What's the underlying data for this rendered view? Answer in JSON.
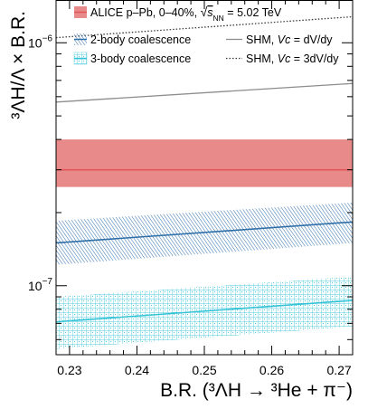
{
  "chart_data": {
    "type": "line",
    "xlabel": "B.R. (³ΛH → ³He + π⁻)",
    "ylabel": "³ΛH/Λ × B.R.",
    "xlim": [
      0.228,
      0.272
    ],
    "ylim": [
      5.2e-08,
      1.5e-06
    ],
    "yscale": "log",
    "x_ticks": [
      0.23,
      0.24,
      0.25,
      0.26,
      0.27
    ],
    "x_tick_labels": [
      "0.23",
      "0.24",
      "0.25",
      "0.26",
      "0.27"
    ],
    "y_tick_labels": [
      {
        "value": 1e-07,
        "base": "10",
        "exp": "−7"
      },
      {
        "value": 1e-06,
        "base": "10",
        "exp": "−6"
      }
    ],
    "series": [
      {
        "name": "ALICE p–Pb, 0–40%, √sNN = 5.02 TeV",
        "kind": "measurement",
        "x": [
          0.228,
          0.272
        ],
        "y": [
          3e-07,
          3e-07
        ],
        "y_low": [
          2.55e-07,
          2.55e-07
        ],
        "y_high": [
          4e-07,
          4e-07
        ],
        "color": "#e15759",
        "band_color": "#e88a89"
      },
      {
        "name": "2-body coalescence",
        "kind": "model-band",
        "x": [
          0.228,
          0.272
        ],
        "y": [
          1.5e-07,
          1.83e-07
        ],
        "y_low": [
          1.22e-07,
          1.5e-07
        ],
        "y_high": [
          1.85e-07,
          2.2e-07
        ],
        "color": "#2f6fa8",
        "band_color": "#5f8fbe"
      },
      {
        "name": "3-body coalescence",
        "kind": "model-band",
        "x": [
          0.228,
          0.272
        ],
        "y": [
          7.1e-08,
          8.7e-08
        ],
        "y_low": [
          5.5e-08,
          6.8e-08
        ],
        "y_high": [
          9e-08,
          1.09e-07
        ],
        "color": "#34c3d6",
        "band_color": "#6fd3e0"
      },
      {
        "name": "SHM, Vc = dV/dy",
        "kind": "model-line",
        "x": [
          0.228,
          0.272
        ],
        "y": [
          5.7e-07,
          6.8e-07
        ],
        "color": "#8c8c8c",
        "dash": "solid"
      },
      {
        "name": "SHM, Vc = 3dV/dy",
        "kind": "model-line",
        "x": [
          0.228,
          0.272
        ],
        "y": [
          1.05e-06,
          1.28e-06
        ],
        "color": "#3a3a3a",
        "dash": "dotted"
      }
    ],
    "legend": {
      "position": "top",
      "alice": {
        "prefix": "ALICE p–Pb, 0–40%, ",
        "sqrt_s": "√",
        "s": "s",
        "sub": "NN",
        "suffix": " = 5.02 TeV"
      },
      "two_body": "2-body coalescence",
      "three_body": "3-body coalescence",
      "shm1": {
        "prefix": "SHM, ",
        "vc": "Vc",
        "suffix": " = dV/dy"
      },
      "shm3": {
        "prefix": "SHM, ",
        "vc": "Vc",
        "suffix": " = 3dV/dy"
      }
    },
    "grid": false
  }
}
